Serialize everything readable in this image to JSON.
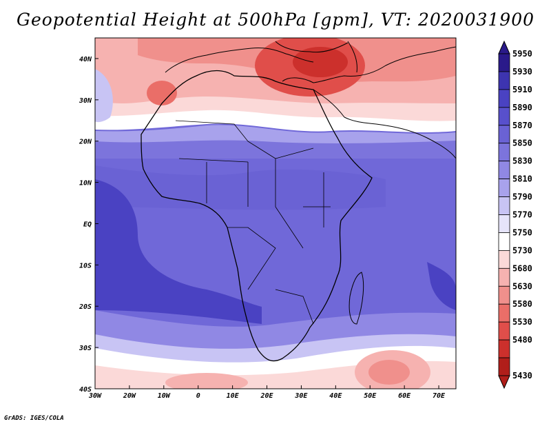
{
  "title": "Geopotential Height at 500hPa [gpm], VT: 2020031900",
  "footer": "GrADS: IGES/COLA",
  "chart_data": {
    "type": "map",
    "variable": "Geopotential Height at 500hPa",
    "units": "gpm",
    "valid_time": "2020031900",
    "lon_ticks": [
      "30W",
      "20W",
      "10W",
      "0",
      "10E",
      "20E",
      "30E",
      "40E",
      "50E",
      "60E",
      "70E"
    ],
    "lon_values": [
      -30,
      -20,
      -10,
      0,
      10,
      20,
      30,
      40,
      50,
      60,
      70
    ],
    "lat_ticks": [
      "40N",
      "30N",
      "20N",
      "10N",
      "EQ",
      "10S",
      "20S",
      "30S",
      "40S"
    ],
    "lat_values": [
      40,
      30,
      20,
      10,
      0,
      -10,
      -20,
      -30,
      -40
    ],
    "lon_range": [
      -30,
      75
    ],
    "lat_range": [
      -40,
      45
    ],
    "colorbar": {
      "levels": [
        "5950",
        "5930",
        "5910",
        "5890",
        "5870",
        "5850",
        "5830",
        "5810",
        "5790",
        "5770",
        "5750",
        "5730",
        "5680",
        "5630",
        "5580",
        "5530",
        "5480",
        "5430"
      ],
      "colors": [
        "#2a1a8a",
        "#3d34b0",
        "#4a42c2",
        "#5850cc",
        "#6a62d4",
        "#7c74dc",
        "#9088e4",
        "#a8a2ec",
        "#c8c4f4",
        "#e6e4fa",
        "#ffffff",
        "#fbd9d8",
        "#f6b2b0",
        "#f0908c",
        "#ea6e68",
        "#e04e4a",
        "#cc302c",
        "#b01e1a"
      ]
    }
  }
}
